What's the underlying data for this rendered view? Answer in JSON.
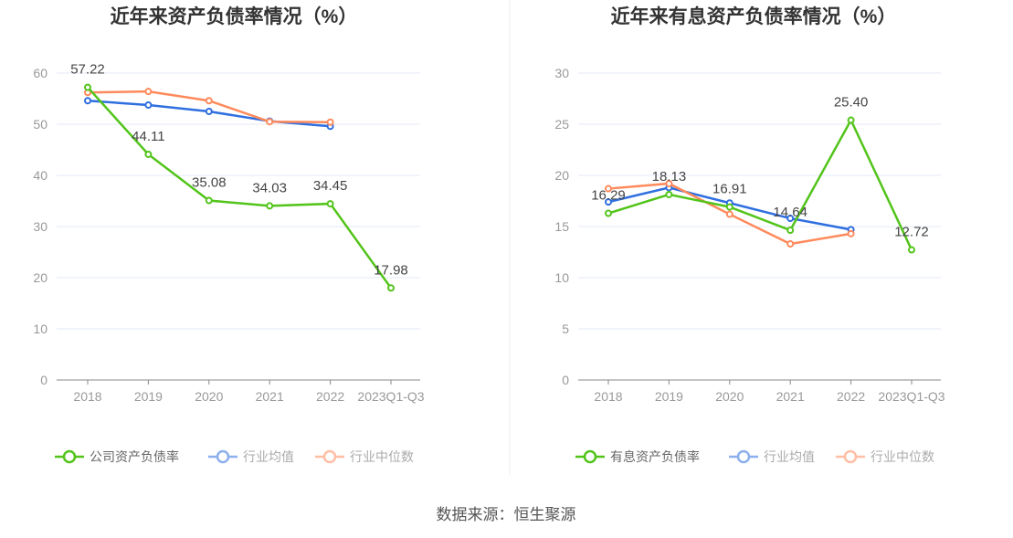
{
  "source": "数据来源：恒生聚源",
  "colors": {
    "company": "#52c41a",
    "avg": "#2f6fe0",
    "median": "#ff8a5c",
    "grid": "#e3e8f5",
    "axis": "#888"
  },
  "chart_data": [
    {
      "type": "line",
      "title": "近年来资产负债率情况（%）",
      "categories": [
        "2018",
        "2019",
        "2020",
        "2021",
        "2022",
        "2023Q1-Q3"
      ],
      "ylim": [
        0,
        60
      ],
      "yticks": [
        0,
        10,
        20,
        30,
        40,
        50,
        60
      ],
      "legend_position": "bottom",
      "series": [
        {
          "name": "公司资产负债率",
          "key": "company",
          "values": [
            57.22,
            44.11,
            35.08,
            34.03,
            34.45,
            17.98
          ],
          "labels": [
            "57.22",
            "44.11",
            "35.08",
            "34.03",
            "34.45",
            "17.98"
          ]
        },
        {
          "name": "行业均值",
          "key": "avg",
          "values": [
            54.6,
            53.75,
            52.5,
            50.6,
            49.6,
            null
          ]
        },
        {
          "name": "行业中位数",
          "key": "median",
          "values": [
            56.2,
            56.4,
            54.6,
            50.5,
            50.4,
            null
          ]
        }
      ]
    },
    {
      "type": "line",
      "title": "近年来有息资产负债率情况（%）",
      "categories": [
        "2018",
        "2019",
        "2020",
        "2021",
        "2022",
        "2023Q1-Q3"
      ],
      "ylim": [
        0,
        30
      ],
      "yticks": [
        0,
        5,
        10,
        15,
        20,
        25,
        30
      ],
      "legend_position": "bottom",
      "series": [
        {
          "name": "有息资产负债率",
          "key": "company",
          "values": [
            16.29,
            18.13,
            16.91,
            14.64,
            25.4,
            12.72
          ],
          "labels": [
            "16.29",
            "18.13",
            "16.91",
            "14.64",
            "25.40",
            "12.72"
          ]
        },
        {
          "name": "行业均值",
          "key": "avg",
          "values": [
            17.4,
            18.8,
            17.3,
            15.8,
            14.7,
            null
          ]
        },
        {
          "name": "行业中位数",
          "key": "median",
          "values": [
            18.7,
            19.2,
            16.2,
            13.3,
            14.3,
            null
          ]
        }
      ]
    }
  ]
}
